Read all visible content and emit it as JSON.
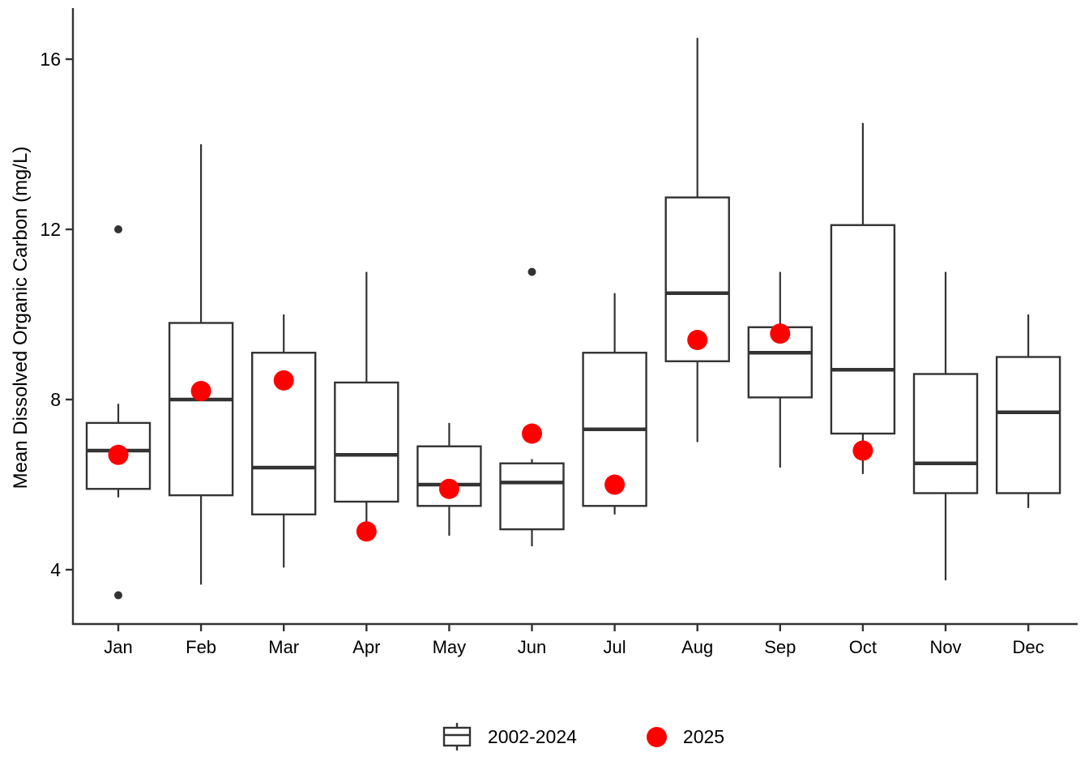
{
  "colors": {
    "red": "#ff0000",
    "ink": "#333333",
    "text": "#000000",
    "background": "#ffffff"
  },
  "chart_data": {
    "type": "boxplot",
    "title": "",
    "xlabel": "",
    "ylabel": "Mean Dissolved Organic Carbon (mg/L)",
    "ylim": [
      2.7,
      17.2
    ],
    "yticks": [
      4,
      8,
      12,
      16
    ],
    "grid": false,
    "legend_position": "bottom",
    "categories": [
      "Jan",
      "Feb",
      "Mar",
      "Apr",
      "May",
      "Jun",
      "Jul",
      "Aug",
      "Sep",
      "Oct",
      "Nov",
      "Dec"
    ],
    "series": [
      {
        "name": "2002-2024",
        "kind": "box",
        "boxes": [
          {
            "category": "Jan",
            "whisker_low": 5.7,
            "q1": 5.9,
            "median": 6.8,
            "q3": 7.45,
            "whisker_high": 7.9,
            "outliers": [
              3.4,
              12.0
            ]
          },
          {
            "category": "Feb",
            "whisker_low": 3.65,
            "q1": 5.75,
            "median": 8.0,
            "q3": 9.8,
            "whisker_high": 14.0,
            "outliers": []
          },
          {
            "category": "Mar",
            "whisker_low": 4.05,
            "q1": 5.3,
            "median": 6.4,
            "q3": 9.1,
            "whisker_high": 10.0,
            "outliers": []
          },
          {
            "category": "Apr",
            "whisker_low": 5.1,
            "q1": 5.6,
            "median": 6.7,
            "q3": 8.4,
            "whisker_high": 11.0,
            "outliers": []
          },
          {
            "category": "May",
            "whisker_low": 4.8,
            "q1": 5.5,
            "median": 6.0,
            "q3": 6.9,
            "whisker_high": 7.45,
            "outliers": []
          },
          {
            "category": "Jun",
            "whisker_low": 4.55,
            "q1": 4.95,
            "median": 6.05,
            "q3": 6.5,
            "whisker_high": 6.6,
            "outliers": [
              11.0
            ]
          },
          {
            "category": "Jul",
            "whisker_low": 5.3,
            "q1": 5.5,
            "median": 7.3,
            "q3": 9.1,
            "whisker_high": 10.5,
            "outliers": []
          },
          {
            "category": "Aug",
            "whisker_low": 7.0,
            "q1": 8.9,
            "median": 10.5,
            "q3": 12.75,
            "whisker_high": 16.5,
            "outliers": []
          },
          {
            "category": "Sep",
            "whisker_low": 6.4,
            "q1": 8.05,
            "median": 9.1,
            "q3": 9.7,
            "whisker_high": 11.0,
            "outliers": []
          },
          {
            "category": "Oct",
            "whisker_low": 6.25,
            "q1": 7.2,
            "median": 8.7,
            "q3": 12.1,
            "whisker_high": 14.5,
            "outliers": []
          },
          {
            "category": "Nov",
            "whisker_low": 3.75,
            "q1": 5.8,
            "median": 6.5,
            "q3": 8.6,
            "whisker_high": 11.0,
            "outliers": []
          },
          {
            "category": "Dec",
            "whisker_low": 5.45,
            "q1": 5.8,
            "median": 7.7,
            "q3": 9.0,
            "whisker_high": 10.0,
            "outliers": []
          }
        ]
      },
      {
        "name": "2025",
        "kind": "point",
        "values": [
          6.7,
          8.2,
          8.45,
          4.9,
          5.9,
          7.2,
          6.0,
          9.4,
          9.55,
          6.8,
          null,
          null
        ]
      }
    ],
    "legend": {
      "entries": [
        {
          "label": "2002-2024",
          "glyph": "boxplot"
        },
        {
          "label": "2025",
          "glyph": "red-dot"
        }
      ]
    }
  }
}
